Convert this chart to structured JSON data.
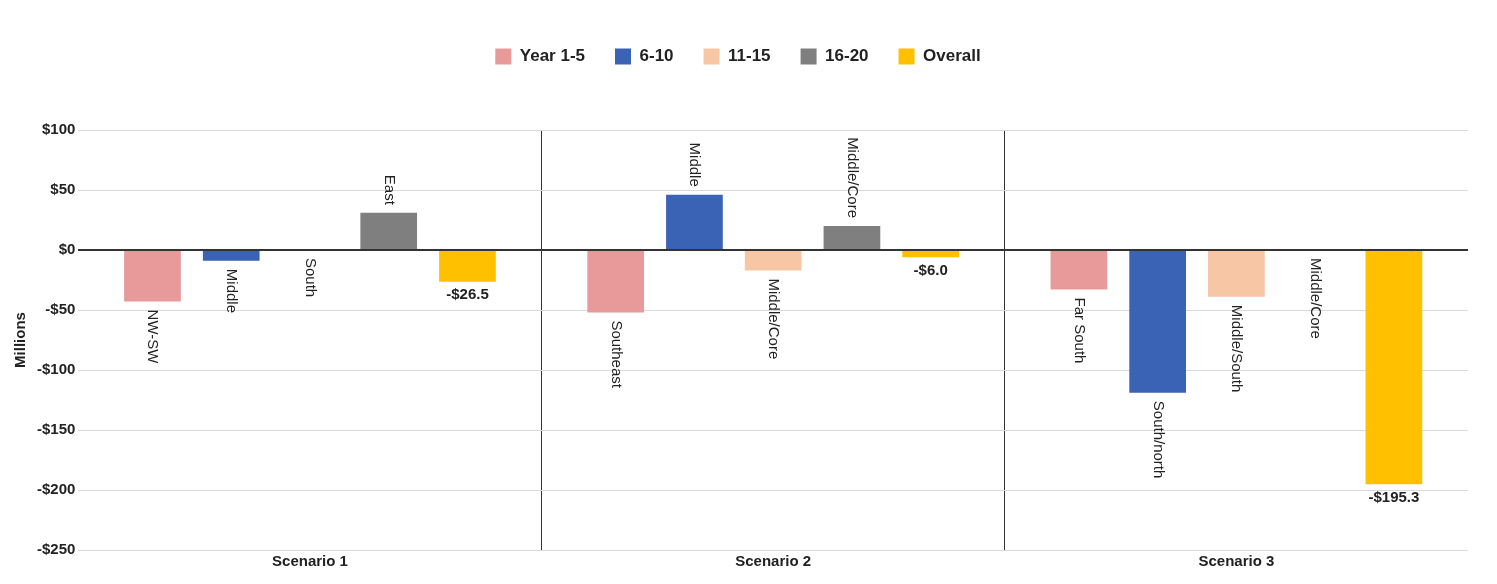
{
  "chart_data": {
    "type": "bar",
    "ylabel": "Millions",
    "categories": [
      "Scenario 1",
      "Scenario 2",
      "Scenario 3"
    ],
    "series": [
      {
        "name": "Year 1-5",
        "color": "#e89a9a",
        "values": [
          -43,
          -52,
          -33
        ]
      },
      {
        "name": "6-10",
        "color": "#3a62b5",
        "values": [
          -9,
          46,
          -119
        ]
      },
      {
        "name": "11-15",
        "color": "#f7c6a4",
        "values": [
          0,
          -17,
          -39
        ]
      },
      {
        "name": "16-20",
        "color": "#7f7f7f",
        "values": [
          31,
          20,
          0
        ]
      },
      {
        "name": "Overall",
        "color": "#ffc000",
        "values": [
          -26.5,
          -6.0,
          -195.3
        ],
        "value_labels": [
          "-$26.5",
          "-$6.0",
          "-$195.3"
        ]
      }
    ],
    "ylim": [
      -250,
      100
    ],
    "yticks": [
      {
        "value": -250,
        "label": "-$250"
      },
      {
        "value": -200,
        "label": "-$200"
      },
      {
        "value": -150,
        "label": "-$150"
      },
      {
        "value": -100,
        "label": "-$100"
      },
      {
        "value": -50,
        "label": "-$50"
      },
      {
        "value": 0,
        "label": "$0"
      },
      {
        "value": 50,
        "label": "$50"
      },
      {
        "value": 100,
        "label": "$100"
      }
    ],
    "grid": "y",
    "legend": "top",
    "annotations": [
      "NW-SW",
      "Middle",
      "South",
      "East",
      "Southeast",
      "Middle",
      "Middle/Core",
      "Middle/Core",
      "Far South",
      "South/north",
      "Middle/South",
      "Middle/Core"
    ]
  }
}
